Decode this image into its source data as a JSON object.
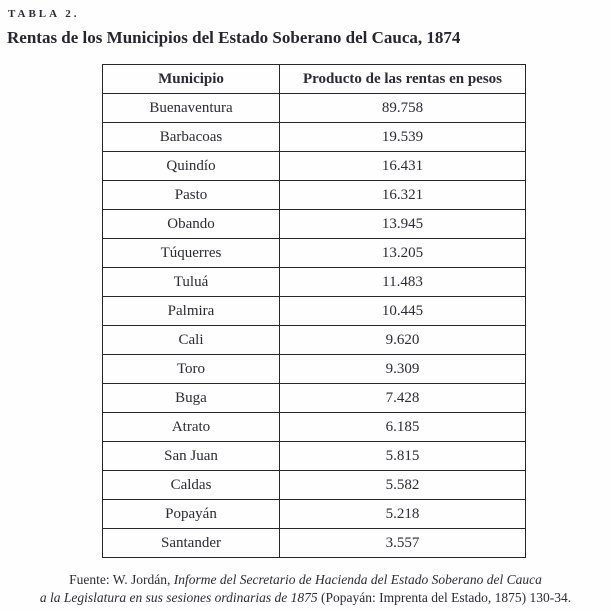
{
  "page": {
    "label": "TABLA 2.",
    "title": "Rentas de los Municipios del Estado Soberano del Cauca, 1874"
  },
  "table": {
    "headers": {
      "municipio": "Municipio",
      "producto": "Producto de las rentas en pesos"
    },
    "rows": [
      {
        "municipio": "Buenaventura",
        "valor": "89.758"
      },
      {
        "municipio": "Barbacoas",
        "valor": "19.539"
      },
      {
        "municipio": "Quindío",
        "valor": "16.431"
      },
      {
        "municipio": "Pasto",
        "valor": "16.321"
      },
      {
        "municipio": "Obando",
        "valor": "13.945"
      },
      {
        "municipio": "Túquerres",
        "valor": "13.205"
      },
      {
        "municipio": "Tuluá",
        "valor": "11.483"
      },
      {
        "municipio": "Palmira",
        "valor": "10.445"
      },
      {
        "municipio": "Cali",
        "valor": "9.620"
      },
      {
        "municipio": "Toro",
        "valor": "9.309"
      },
      {
        "municipio": "Buga",
        "valor": "7.428"
      },
      {
        "municipio": "Atrato",
        "valor": "6.185"
      },
      {
        "municipio": "San Juan",
        "valor": "5.815"
      },
      {
        "municipio": "Caldas",
        "valor": "5.582"
      },
      {
        "municipio": "Popayán",
        "valor": "5.218"
      },
      {
        "municipio": "Santander",
        "valor": "3.557"
      }
    ]
  },
  "source": {
    "prefix": "Fuente: W. Jordán, ",
    "title_line1": "Informe del Secretario de Hacienda del Estado Soberano del Cauca",
    "title_line2": "a la Legislatura en sus sesiones ordinarias de 1875",
    "suffix": " (Popayán: Imprenta del Estado, 1875) 130-34."
  },
  "colors": {
    "text": "#2b2b33",
    "border": "#26262b",
    "background": "#fefefe"
  }
}
